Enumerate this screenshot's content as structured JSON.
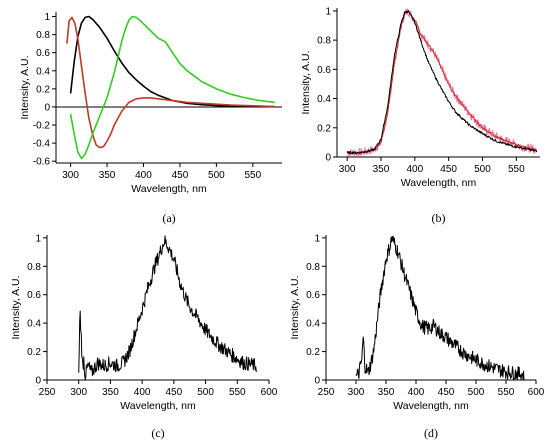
{
  "colors": {
    "black": "#000000",
    "red": "#c0392b",
    "green": "#33cc22",
    "noise": "#ff77aa"
  },
  "chart_data": [
    {
      "panel": "a",
      "caption": "(a)",
      "type": "line",
      "xlabel": "Wavelength, nm",
      "ylabel": "Intensity, A.U.",
      "xlim": [
        280,
        590
      ],
      "ylim": [
        -0.62,
        1.05
      ],
      "xticks": [
        300,
        350,
        400,
        450,
        500,
        550
      ],
      "yticks": [
        -0.6,
        -0.4,
        -0.2,
        0,
        0.2,
        0.4,
        0.6,
        0.8,
        1
      ],
      "ytick_labels": [
        "-0.6",
        "-0.4",
        "-0.2",
        "0",
        "0.2",
        "0.4",
        "0.6",
        "0.8",
        "1"
      ],
      "zero_line": true,
      "series": [
        {
          "color": "#000000",
          "x": [
            300,
            305,
            310,
            315,
            320,
            325,
            330,
            340,
            350,
            360,
            370,
            380,
            390,
            400,
            410,
            420,
            430,
            440,
            460,
            480,
            500,
            520,
            540,
            560,
            580
          ],
          "y": [
            0.15,
            0.5,
            0.78,
            0.93,
            0.99,
            1.0,
            0.97,
            0.88,
            0.76,
            0.62,
            0.49,
            0.38,
            0.3,
            0.23,
            0.17,
            0.13,
            0.1,
            0.07,
            0.04,
            0.025,
            0.015,
            0.01,
            0.007,
            0.005,
            0.003
          ]
        },
        {
          "color": "#c0392b",
          "x": [
            295,
            298,
            302,
            306,
            310,
            315,
            320,
            325,
            330,
            335,
            340,
            345,
            350,
            355,
            360,
            370,
            380,
            390,
            400,
            410,
            420,
            440,
            460,
            480,
            500,
            520,
            540,
            560,
            580
          ],
          "y": [
            0.7,
            0.95,
            0.99,
            0.92,
            0.75,
            0.45,
            0.15,
            -0.12,
            -0.3,
            -0.42,
            -0.45,
            -0.44,
            -0.38,
            -0.3,
            -0.2,
            -0.05,
            0.05,
            0.09,
            0.1,
            0.1,
            0.09,
            0.07,
            0.05,
            0.04,
            0.03,
            0.02,
            0.015,
            0.01,
            0.005
          ]
        },
        {
          "color": "#33cc22",
          "x": [
            300,
            305,
            310,
            315,
            320,
            325,
            330,
            340,
            350,
            360,
            365,
            370,
            375,
            380,
            385,
            390,
            395,
            400,
            410,
            420,
            430,
            440,
            450,
            460,
            480,
            500,
            520,
            540,
            560,
            580
          ],
          "y": [
            -0.08,
            -0.3,
            -0.5,
            -0.57,
            -0.52,
            -0.42,
            -0.3,
            -0.1,
            0.1,
            0.38,
            0.55,
            0.72,
            0.86,
            0.96,
            1.0,
            0.99,
            0.96,
            0.92,
            0.84,
            0.76,
            0.72,
            0.6,
            0.48,
            0.4,
            0.28,
            0.2,
            0.14,
            0.1,
            0.07,
            0.05
          ]
        }
      ]
    },
    {
      "panel": "b",
      "caption": "(b)",
      "type": "line",
      "xlabel": "Wavelength, nm",
      "ylabel": "Intensity, A.U.",
      "xlim": [
        285,
        585
      ],
      "ylim": [
        0,
        1.02
      ],
      "xticks": [
        300,
        350,
        400,
        450,
        500,
        550
      ],
      "yticks": [
        0,
        0.2,
        0.4,
        0.6,
        0.8,
        1
      ],
      "ytick_labels": [
        "0",
        "0.2",
        "0.4",
        "0.6",
        "0.8",
        "1"
      ],
      "series": [
        {
          "color": "#ff77aa",
          "x": [
            300,
            320,
            340,
            350,
            360,
            370,
            380,
            385,
            390,
            400,
            410,
            420,
            430,
            440,
            450,
            460,
            480,
            500,
            520,
            540,
            560,
            580
          ],
          "y": [
            0.03,
            0.03,
            0.05,
            0.1,
            0.3,
            0.65,
            0.9,
            0.98,
            1.0,
            0.94,
            0.83,
            0.77,
            0.7,
            0.6,
            0.5,
            0.42,
            0.3,
            0.2,
            0.14,
            0.1,
            0.07,
            0.05
          ],
          "noise": 0.03
        },
        {
          "color": "#c0392b",
          "x": [
            300,
            320,
            340,
            350,
            360,
            370,
            380,
            385,
            390,
            400,
            410,
            420,
            430,
            440,
            450,
            460,
            480,
            500,
            520,
            540,
            560,
            580
          ],
          "y": [
            0.03,
            0.03,
            0.05,
            0.1,
            0.3,
            0.65,
            0.9,
            0.98,
            1.0,
            0.94,
            0.83,
            0.77,
            0.7,
            0.6,
            0.5,
            0.42,
            0.3,
            0.2,
            0.14,
            0.1,
            0.07,
            0.05
          ],
          "noise": 0.008
        },
        {
          "color": "#000000",
          "x": [
            300,
            320,
            340,
            350,
            360,
            370,
            380,
            385,
            390,
            400,
            410,
            420,
            430,
            440,
            450,
            460,
            480,
            500,
            520,
            540,
            560,
            580
          ],
          "y": [
            0.03,
            0.03,
            0.05,
            0.12,
            0.35,
            0.7,
            0.92,
            0.99,
            1.0,
            0.92,
            0.78,
            0.65,
            0.55,
            0.46,
            0.38,
            0.31,
            0.22,
            0.16,
            0.11,
            0.08,
            0.06,
            0.04
          ],
          "noise": 0.008
        }
      ]
    },
    {
      "panel": "c",
      "caption": "(c)",
      "type": "line",
      "xlabel": "Wavelength, nm",
      "ylabel": "Intensity, A.U.",
      "xlim": [
        250,
        600
      ],
      "ylim": [
        0,
        1.02
      ],
      "xticks": [
        250,
        300,
        350,
        400,
        450,
        500,
        550,
        600
      ],
      "yticks": [
        0,
        0.2,
        0.4,
        0.6,
        0.8,
        1
      ],
      "ytick_labels": [
        "0",
        "0.2",
        "0.4",
        "0.6",
        "0.8",
        "1"
      ],
      "series": [
        {
          "color": "#000000",
          "x": [
            300,
            302,
            304,
            306,
            308,
            310,
            315,
            320,
            330,
            340,
            350,
            360,
            370,
            380,
            390,
            400,
            410,
            420,
            430,
            435,
            440,
            450,
            460,
            470,
            480,
            490,
            500,
            520,
            540,
            560,
            580
          ],
          "y": [
            0.02,
            0.5,
            0.3,
            0.08,
            0.15,
            0.03,
            0.1,
            0.05,
            0.12,
            0.1,
            0.12,
            0.1,
            0.12,
            0.2,
            0.35,
            0.5,
            0.66,
            0.8,
            0.92,
            0.98,
            0.95,
            0.85,
            0.68,
            0.56,
            0.48,
            0.42,
            0.35,
            0.25,
            0.18,
            0.12,
            0.1
          ],
          "noise": 0.05
        }
      ]
    },
    {
      "panel": "d",
      "caption": "(d)",
      "type": "line",
      "xlabel": "Wavelength, nm",
      "ylabel": "Intensity, A.U.",
      "xlim": [
        250,
        600
      ],
      "ylim": [
        0,
        1.02
      ],
      "xticks": [
        250,
        300,
        350,
        400,
        450,
        500,
        550,
        600
      ],
      "yticks": [
        0,
        0.2,
        0.4,
        0.6,
        0.8,
        1
      ],
      "ytick_labels": [
        "0",
        "0.2",
        "0.4",
        "0.6",
        "0.8",
        "1"
      ],
      "series": [
        {
          "color": "#000000",
          "x": [
            300,
            305,
            310,
            312,
            315,
            320,
            325,
            330,
            335,
            340,
            345,
            350,
            355,
            360,
            365,
            370,
            380,
            390,
            400,
            410,
            420,
            430,
            440,
            450,
            460,
            480,
            500,
            520,
            540,
            560,
            580
          ],
          "y": [
            0.02,
            0.05,
            0.15,
            0.3,
            0.1,
            0.05,
            0.12,
            0.22,
            0.4,
            0.58,
            0.72,
            0.85,
            0.92,
            1.0,
            0.95,
            0.9,
            0.75,
            0.62,
            0.48,
            0.38,
            0.36,
            0.38,
            0.33,
            0.3,
            0.26,
            0.19,
            0.14,
            0.1,
            0.07,
            0.05,
            0.04
          ],
          "noise": 0.05
        }
      ]
    }
  ]
}
